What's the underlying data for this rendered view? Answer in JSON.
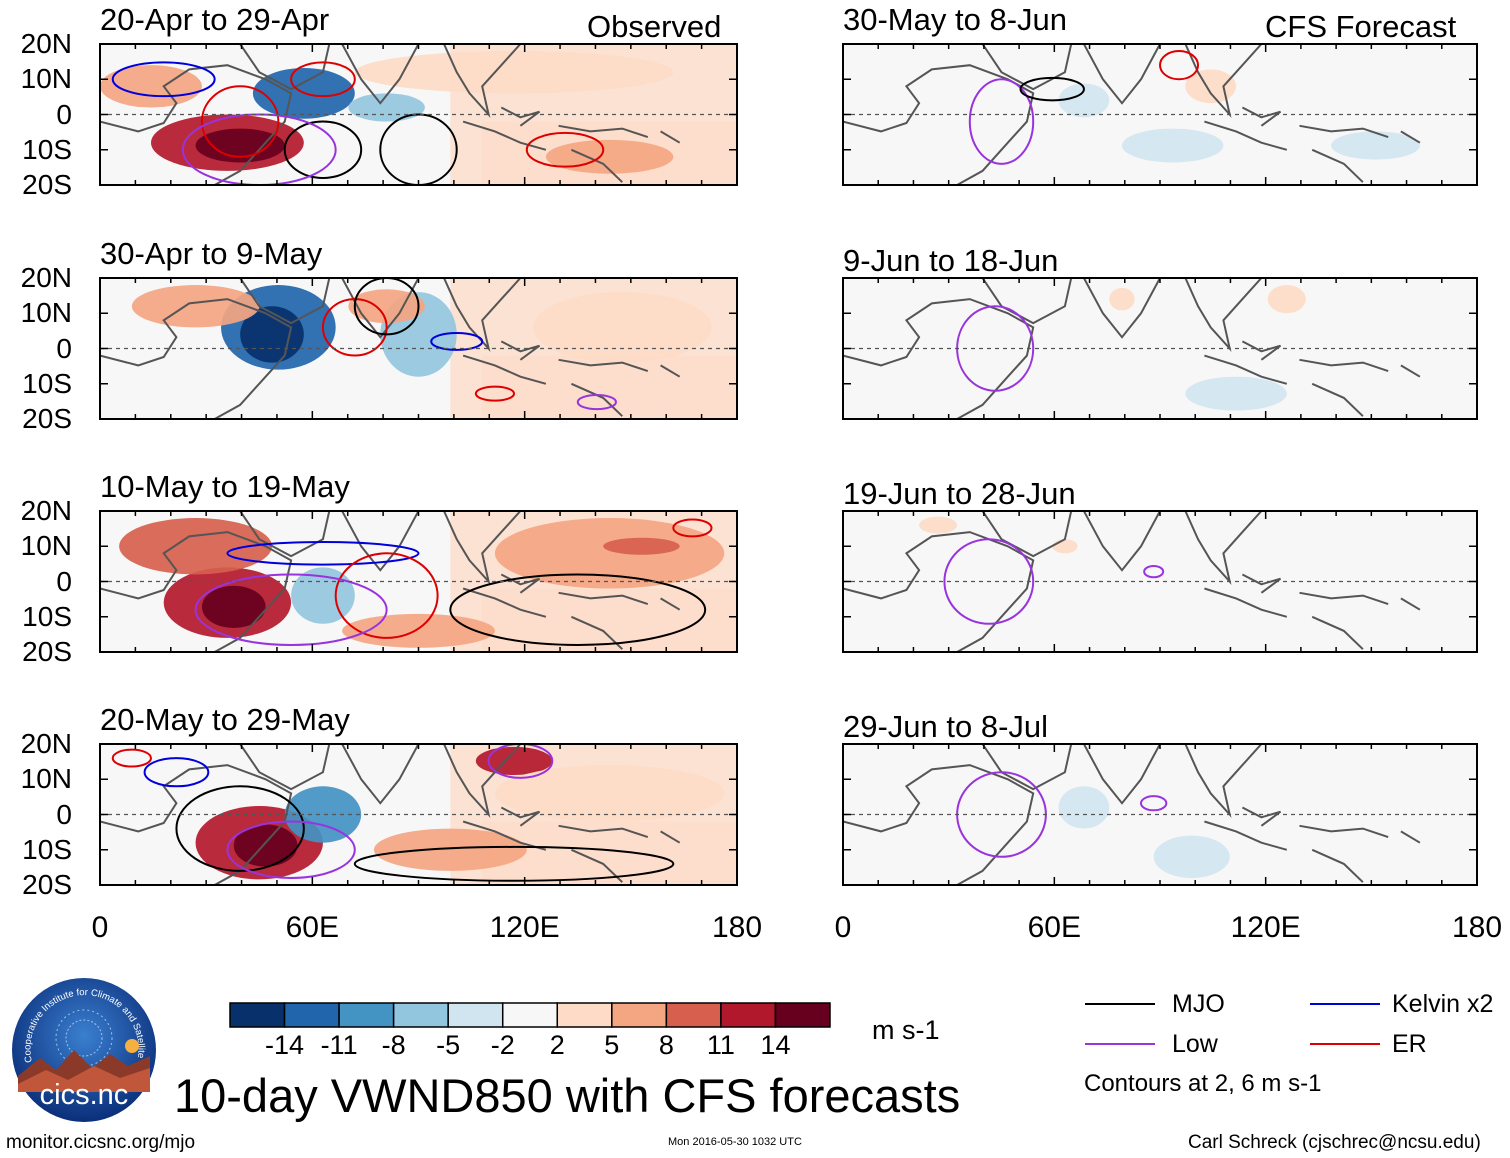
{
  "main_title": "10-day VWND850 with CFS forecasts",
  "observed_label": "Observed",
  "forecast_label": "CFS Forecast",
  "observed_panels": [
    "20-Apr to 29-Apr",
    "30-Apr to 9-May",
    "10-May to 19-May",
    "20-May to 29-May"
  ],
  "forecast_panels": [
    "30-May to 8-Jun",
    "9-Jun to 18-Jun",
    "19-Jun to 28-Jun",
    "29-Jun to 8-Jul"
  ],
  "lat_labels": [
    "20N",
    "10N",
    "0",
    "10S",
    "20S"
  ],
  "lon_labels": [
    "0",
    "60E",
    "120E",
    "180"
  ],
  "colorbar": {
    "colors": [
      "#08306b",
      "#2166ac",
      "#4393c3",
      "#92c5de",
      "#d1e5f0",
      "#f7f7f7",
      "#fddbc7",
      "#f4a582",
      "#d6604d",
      "#b2182b",
      "#67001f"
    ],
    "tick_labels": [
      "-14",
      "-11",
      "-8",
      "-5",
      "-2",
      "2",
      "5",
      "8",
      "11",
      "14"
    ],
    "units": "m s-1"
  },
  "legend": {
    "items": [
      {
        "label": "MJO",
        "color": "#000000"
      },
      {
        "label": "Kelvin x2",
        "color": "#0000dd"
      },
      {
        "label": "Low",
        "color": "#9933dd"
      },
      {
        "label": "ER",
        "color": "#dd0000"
      }
    ],
    "note": "Contours at 2, 6 m s-1"
  },
  "logo_text": "cics.nc",
  "logo_arc_text": "Cooperative Institute for Climate and Satellites",
  "footer": {
    "url": "monitor.cicsnc.org/mjo",
    "timestamp": "Mon 2016-05-30 1032 UTC",
    "credit": "Carl Schreck (cjschrec@ncsu.edu)"
  }
}
